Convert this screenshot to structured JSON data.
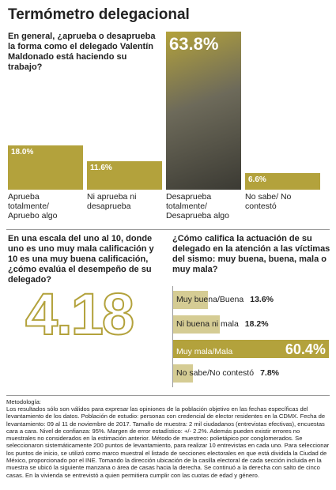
{
  "title": "Termómetro delegacional",
  "chart_data": [
    {
      "type": "bar",
      "title": "En general, ¿aprueba o desaprueba la forma como el delegado Valentín Maldonado está haciendo su trabajo?",
      "categories": [
        "Aprueba totalmente/ Apruebo algo",
        "Ni aprueba ni desaprueba",
        "Desaprueba totalmente/ Desaprueba algo",
        "No sabe/ No contestó"
      ],
      "values": [
        18.0,
        11.6,
        63.8,
        6.6
      ],
      "value_labels": [
        "18.0%",
        "11.6%",
        "63.8%",
        "6.6%"
      ],
      "color": "#b3a23c"
    },
    {
      "type": "hbar",
      "title": "¿Cómo califica la actuación de su delegado en la atención a las víctimas del sismo: muy buena, buena, mala o muy mala?",
      "categories": [
        "Muy buena/Buena",
        "Ni buena ni mala",
        "Muy mala/Mala",
        "No sabe/No contestó"
      ],
      "values": [
        13.6,
        18.2,
        60.4,
        7.8
      ],
      "value_labels": [
        "13.6%",
        "18.2%",
        "60.4%",
        "7.8%"
      ],
      "color": "#b3a23c"
    }
  ],
  "score": {
    "question": "En una escala del uno al 10, donde uno  es uno muy mala calificación y 10 es una muy buena calificación, ¿cómo evalúa el desempeño de su delegado?",
    "value": 4.18
  },
  "methodology": {
    "heading": "Metodología:",
    "text": "Los resultados sólo son válidos para expresar las opiniones de la población objetivo en las fechas específicas del levantamiento de los datos. Población de estudio: personas con credencial de elector residentes en la CDMX. Fecha de levantamiento: 09 al 11 de noviembre de 2017. Tamaño de muestra: 2 mil ciudadanos (entrevistas efectivas), encuestas cara a cara. Nivel de confianza: 95%. Margen de error estadístico: +/- 2.2%. Además pueden existir errores no muestrales no considerados en la estimación anterior. Método de muestreo: polietápico por conglomerados. Se seleccionaron sistemáticamente 200 puntos de levantamiento, para realizar 10 entrevistas en cada uno. Para seleccionar los puntos de inicio, se utilizó como marco muestral el listado de secciones electorales en que está dividida la Ciudad de México, proporcionado por el INE. Tomando la dirección ubicación de la casilla electoral de cada sección incluida en la muestra se ubicó la siguiente manzana o área de casas hacia la derecha. Se continuó a la derecha con salto de cinco casas. En la vivienda se entrevistó a quien permitiera cumplir con las cuotas de edad y género."
  }
}
